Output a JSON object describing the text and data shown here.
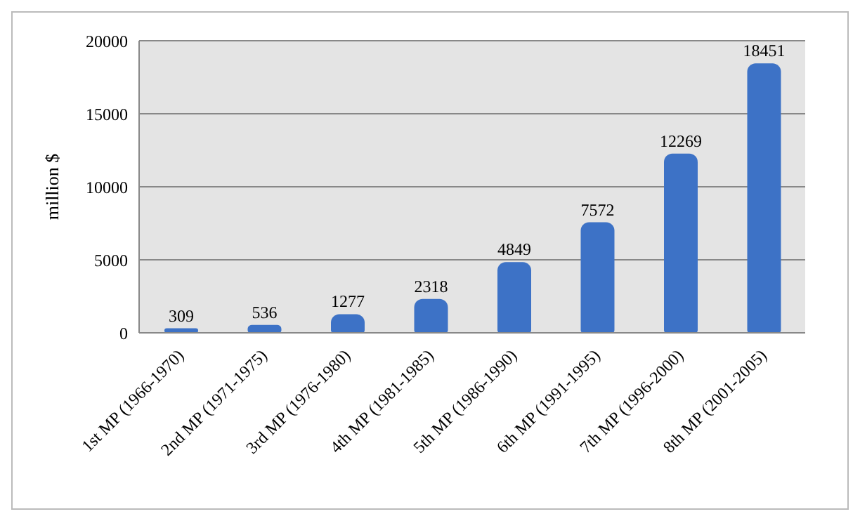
{
  "chart_data": {
    "type": "bar",
    "ylabel": "million $",
    "categories": [
      "1st MP (1966-1970)",
      "2nd MP (1971-1975)",
      "3rd MP (1976-1980)",
      "4th MP (1981-1985)",
      "5th MP (1986-1990)",
      "6th MP (1991-1995)",
      "7th MP (1996-2000)",
      "8th MP (2001-2005)"
    ],
    "values": [
      309,
      536,
      1277,
      2318,
      4849,
      7572,
      12269,
      18451
    ],
    "color": "#3d72c6",
    "ylim": [
      0,
      20000
    ],
    "yticks": [
      0,
      5000,
      10000,
      15000,
      20000
    ],
    "grid": "y",
    "data_labels": true,
    "legend": false
  }
}
